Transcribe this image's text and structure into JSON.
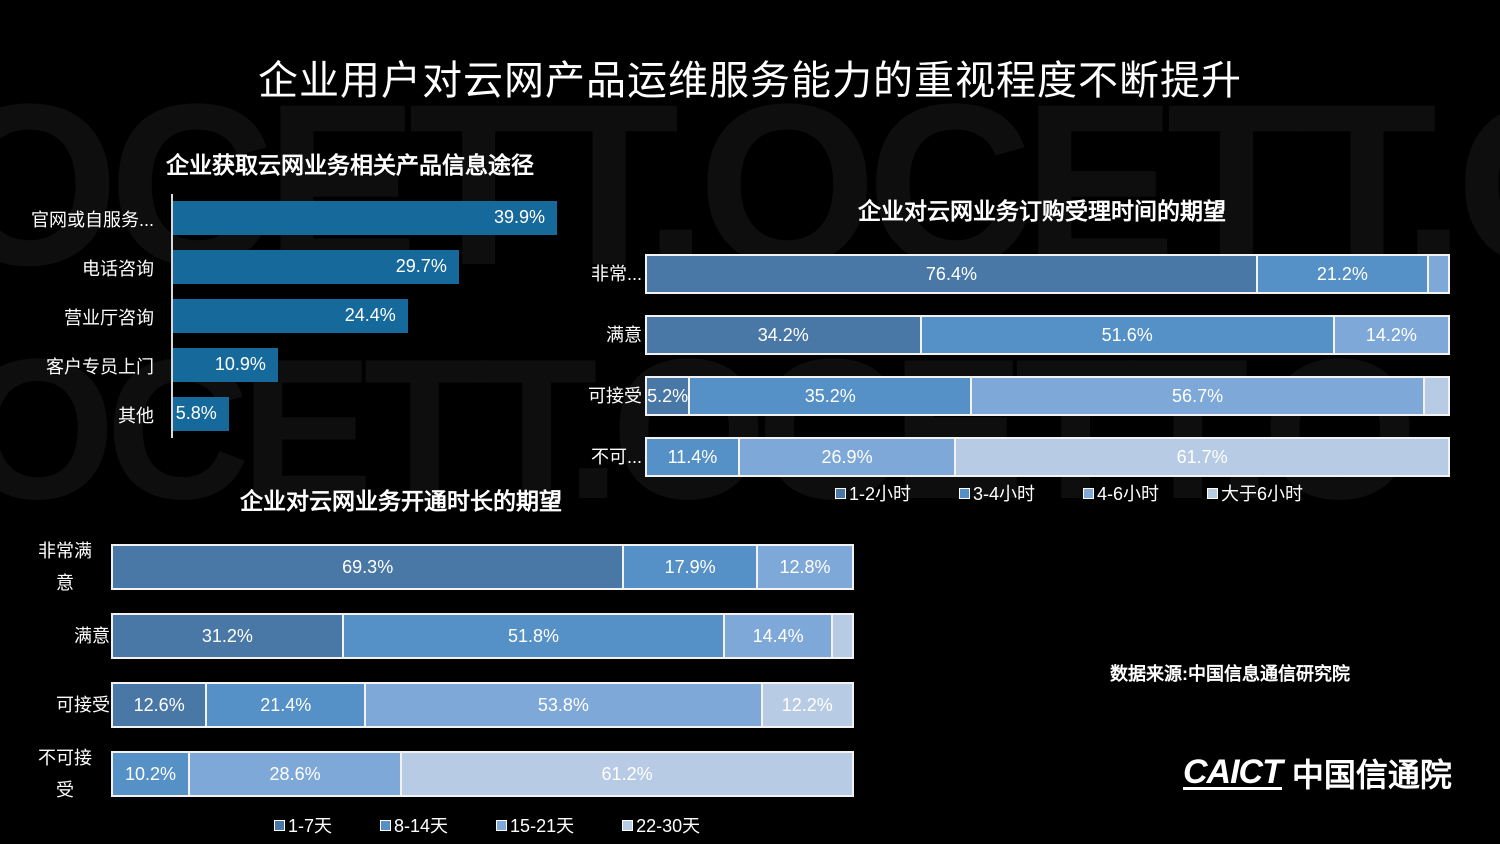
{
  "title": "企业用户对云网产品运维服务能力的重视程度不断提升",
  "watermark": [
    "OCETT.OCETT.OCE",
    "OCETT.OCETT.O"
  ],
  "colors": {
    "background": "#000000",
    "bar_single": "#16699b",
    "stack": [
      "#4a78a6",
      "#5590c6",
      "#7ea8d8",
      "#b8cbe5"
    ]
  },
  "chart_data": [
    {
      "type": "bar",
      "orientation": "horizontal",
      "title": "企业获取云网业务相关产品信息途径",
      "categories": [
        "官网或自服务...",
        "电话咨询",
        "营业厅咨询",
        "客户专员上门",
        "其他"
      ],
      "values": [
        39.9,
        29.7,
        24.4,
        10.9,
        5.8
      ],
      "labels": [
        "39.9%",
        "29.7%",
        "24.4%",
        "10.9%",
        "5.8%"
      ],
      "xlabel": "",
      "ylabel": "",
      "grid": false
    },
    {
      "type": "bar",
      "orientation": "horizontal",
      "stacked": true,
      "title": "企业对云网业务订购受理时间的期望",
      "categories": [
        "非常...",
        "满意",
        "可接受",
        "不可..."
      ],
      "series": [
        {
          "name": "1-2小时",
          "values": [
            76.4,
            34.2,
            5.2,
            0
          ]
        },
        {
          "name": "3-4小时",
          "values": [
            21.2,
            51.6,
            35.2,
            11.4
          ]
        },
        {
          "name": "4-6小时",
          "values": [
            2.4,
            14.2,
            56.7,
            26.9
          ]
        },
        {
          "name": "大于6小时",
          "values": [
            0,
            0,
            2.9,
            61.7
          ]
        }
      ],
      "legend_position": "bottom",
      "xlim": [
        0,
        100
      ]
    },
    {
      "type": "bar",
      "orientation": "horizontal",
      "stacked": true,
      "title": "企业对云网业务开通时长的期望",
      "categories": [
        "非常满意",
        "满意",
        "可接受",
        "不可接受"
      ],
      "series": [
        {
          "name": "1-7天",
          "values": [
            69.3,
            31.2,
            12.6,
            0
          ]
        },
        {
          "name": "8-14天",
          "values": [
            17.9,
            51.8,
            21.4,
            10.2
          ]
        },
        {
          "name": "15-21天",
          "values": [
            12.8,
            14.4,
            53.8,
            28.6
          ]
        },
        {
          "name": "22-30天",
          "values": [
            0,
            2.6,
            12.2,
            61.2
          ]
        }
      ],
      "legend_position": "bottom",
      "xlim": [
        0,
        100
      ]
    }
  ],
  "chart1": {
    "title": "企业获取云网业务相关产品信息途径",
    "bars": [
      {
        "label": "官网或自服务...",
        "value": 39.9,
        "text": "39.9%"
      },
      {
        "label": "电话咨询",
        "value": 29.7,
        "text": "29.7%"
      },
      {
        "label": "营业厅咨询",
        "value": 24.4,
        "text": "24.4%"
      },
      {
        "label": "客户专员上门",
        "value": 10.9,
        "text": "10.9%"
      },
      {
        "label": "其他",
        "value": 5.8,
        "text": "5.8%"
      }
    ]
  },
  "chart2": {
    "title": "企业对云网业务订购受理时间的期望",
    "rows": [
      {
        "label": "非常...",
        "segs": [
          {
            "v": 76.4,
            "t": "76.4%",
            "c": 0
          },
          {
            "v": 21.2,
            "t": "21.2%",
            "c": 1
          },
          {
            "v": 2.4,
            "t": "",
            "c": 2
          }
        ]
      },
      {
        "label": "满意",
        "segs": [
          {
            "v": 34.2,
            "t": "34.2%",
            "c": 0
          },
          {
            "v": 51.6,
            "t": "51.6%",
            "c": 1
          },
          {
            "v": 14.2,
            "t": "14.2%",
            "c": 2
          }
        ]
      },
      {
        "label": "可接受",
        "segs": [
          {
            "v": 5.2,
            "t": "5.2%",
            "c": 0
          },
          {
            "v": 35.2,
            "t": "35.2%",
            "c": 1
          },
          {
            "v": 56.7,
            "t": "56.7%",
            "c": 2
          },
          {
            "v": 2.9,
            "t": "",
            "c": 3
          }
        ]
      },
      {
        "label": "不可...",
        "segs": [
          {
            "v": 11.4,
            "t": "11.4%",
            "c": 1
          },
          {
            "v": 26.9,
            "t": "26.9%",
            "c": 2
          },
          {
            "v": 61.7,
            "t": "61.7%",
            "c": 3
          }
        ]
      }
    ],
    "legend": [
      "1-2小时",
      "3-4小时",
      "4-6小时",
      "大于6小时"
    ]
  },
  "chart3": {
    "title": "企业对云网业务开通时长的期望",
    "rows": [
      {
        "label": "非常满\n意",
        "segs": [
          {
            "v": 69.3,
            "t": "69.3%",
            "c": 0
          },
          {
            "v": 17.9,
            "t": "17.9%",
            "c": 1
          },
          {
            "v": 12.8,
            "t": "12.8%",
            "c": 2
          }
        ]
      },
      {
        "label": "满意",
        "segs": [
          {
            "v": 31.2,
            "t": "31.2%",
            "c": 0
          },
          {
            "v": 51.8,
            "t": "51.8%",
            "c": 1
          },
          {
            "v": 14.4,
            "t": "14.4%",
            "c": 2
          },
          {
            "v": 2.6,
            "t": "",
            "c": 3
          }
        ]
      },
      {
        "label": "可接受",
        "segs": [
          {
            "v": 12.6,
            "t": "12.6%",
            "c": 0
          },
          {
            "v": 21.4,
            "t": "21.4%",
            "c": 1
          },
          {
            "v": 53.8,
            "t": "53.8%",
            "c": 2
          },
          {
            "v": 12.2,
            "t": "12.2%",
            "c": 3
          }
        ]
      },
      {
        "label": "不可接\n受",
        "segs": [
          {
            "v": 10.2,
            "t": "10.2%",
            "c": 1
          },
          {
            "v": 28.6,
            "t": "28.6%",
            "c": 2
          },
          {
            "v": 61.2,
            "t": "61.2%",
            "c": 3
          }
        ]
      }
    ],
    "legend": [
      "1-7天",
      "8-14天",
      "15-21天",
      "22-30天"
    ]
  },
  "source": "数据来源:中国信息通信研究院",
  "logo": {
    "en": "CAICT",
    "cn": "中国信通院"
  }
}
